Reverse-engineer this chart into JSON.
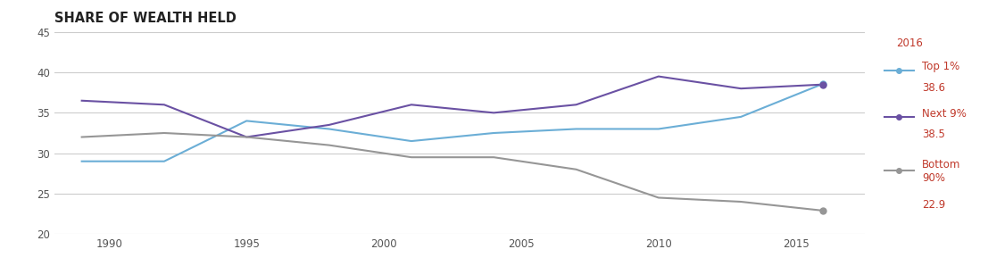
{
  "title": "SHARE OF WEALTH HELD",
  "title_color": "#222222",
  "title_fontsize": 10.5,
  "background_color": "#ffffff",
  "plot_bg_color": "#ffffff",
  "grid_color": "#cccccc",
  "years": [
    1989,
    1992,
    1995,
    1998,
    2001,
    2004,
    2007,
    2010,
    2013,
    2016
  ],
  "top1": [
    29.0,
    29.0,
    34.0,
    33.0,
    31.5,
    32.5,
    33.0,
    33.0,
    34.5,
    38.6
  ],
  "next9": [
    36.5,
    36.0,
    32.0,
    33.5,
    36.0,
    35.0,
    36.0,
    39.5,
    38.0,
    38.5
  ],
  "bottom90": [
    32.0,
    32.5,
    32.0,
    31.0,
    29.5,
    29.5,
    28.0,
    24.5,
    24.0,
    22.9
  ],
  "top1_color": "#6baed6",
  "next9_color": "#6a51a3",
  "bottom90_color": "#969696",
  "ylim": [
    20,
    45
  ],
  "yticks": [
    20,
    25,
    30,
    35,
    40,
    45
  ],
  "xlim": [
    1988,
    2017.5
  ],
  "xticks": [
    1990,
    1995,
    2000,
    2005,
    2010,
    2015
  ],
  "legend_year": "2016",
  "legend_top1_label": "Top 1%",
  "legend_top1_value": "38.6",
  "legend_next9_label": "Next 9%",
  "legend_next9_value": "38.5",
  "legend_bottom90_label": "Bottom\n90%",
  "legend_bottom90_value": "22.9",
  "legend_color": "#c0392b",
  "legend_value_color": "#c0392b",
  "line_width": 1.5,
  "marker_size": 5
}
